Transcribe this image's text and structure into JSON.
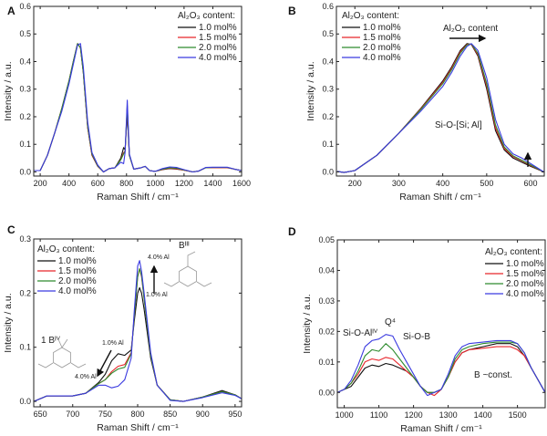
{
  "chart_data": [
    {
      "panel": "A",
      "type": "line",
      "xlabel": "Raman Shift / cm⁻¹",
      "ylabel": "Intensity / a.u.",
      "xlim": [
        155,
        1600
      ],
      "ylim": [
        -0.015,
        0.6
      ],
      "xticks": [
        200,
        400,
        600,
        800,
        1000,
        1200,
        1400,
        1600
      ],
      "yticks": [
        0.0,
        0.1,
        0.2,
        0.3,
        0.4,
        0.5,
        0.6
      ],
      "ydecimals": 1,
      "legend_title": "Al₂O₃ content:",
      "legend_position": "top-right",
      "annotations": [],
      "x": [
        160,
        200,
        250,
        300,
        350,
        400,
        430,
        460,
        480,
        500,
        530,
        560,
        600,
        640,
        680,
        720,
        760,
        780,
        790,
        805,
        820,
        850,
        900,
        930,
        960,
        1000,
        1050,
        1100,
        1150,
        1200,
        1260,
        1300,
        1350,
        1400,
        1500,
        1550,
        1600
      ],
      "series": [
        {
          "name": "1.0 mol%",
          "color": "#111111",
          "values": [
            0.005,
            0.005,
            0.06,
            0.14,
            0.23,
            0.33,
            0.4,
            0.465,
            0.45,
            0.36,
            0.16,
            0.06,
            0.02,
            0.0,
            0.012,
            0.015,
            0.05,
            0.088,
            0.08,
            0.21,
            0.06,
            0.01,
            0.015,
            0.02,
            0.005,
            0.002,
            0.008,
            0.012,
            0.01,
            0.006,
            0.0,
            0.003,
            0.015,
            0.016,
            0.016,
            0.01,
            0.005
          ]
        },
        {
          "name": "1.5 mol%",
          "color": "#e8262b",
          "values": [
            0.005,
            0.005,
            0.06,
            0.14,
            0.23,
            0.33,
            0.4,
            0.465,
            0.45,
            0.36,
            0.16,
            0.062,
            0.021,
            0.0,
            0.012,
            0.015,
            0.045,
            0.07,
            0.075,
            0.235,
            0.06,
            0.01,
            0.015,
            0.02,
            0.005,
            0.002,
            0.009,
            0.013,
            0.011,
            0.006,
            0.0,
            0.003,
            0.015,
            0.015,
            0.015,
            0.01,
            0.005
          ]
        },
        {
          "name": "2.0 mol%",
          "color": "#2e8b2e",
          "values": [
            0.005,
            0.005,
            0.06,
            0.14,
            0.23,
            0.33,
            0.4,
            0.465,
            0.45,
            0.36,
            0.165,
            0.065,
            0.022,
            0.0,
            0.012,
            0.015,
            0.044,
            0.065,
            0.075,
            0.24,
            0.06,
            0.01,
            0.015,
            0.02,
            0.005,
            0.002,
            0.01,
            0.015,
            0.013,
            0.007,
            0.0,
            0.003,
            0.015,
            0.016,
            0.016,
            0.01,
            0.005
          ]
        },
        {
          "name": "4.0 mol%",
          "color": "#3a3ae0",
          "values": [
            0.005,
            0.005,
            0.06,
            0.14,
            0.22,
            0.32,
            0.39,
            0.46,
            0.465,
            0.38,
            0.18,
            0.07,
            0.025,
            0.0,
            0.012,
            0.015,
            0.035,
            0.03,
            0.07,
            0.26,
            0.065,
            0.01,
            0.015,
            0.02,
            0.005,
            0.002,
            0.012,
            0.018,
            0.016,
            0.008,
            0.0,
            0.003,
            0.016,
            0.017,
            0.017,
            0.01,
            0.005
          ]
        }
      ]
    },
    {
      "panel": "B",
      "type": "line",
      "xlabel": "Raman Shift / cm⁻¹",
      "ylabel": "Intensity / a.u.",
      "xlim": [
        158,
        631
      ],
      "ylim": [
        -0.015,
        0.6
      ],
      "xticks": [
        200,
        300,
        400,
        500,
        600
      ],
      "yticks": [
        0.0,
        0.1,
        0.2,
        0.3,
        0.4,
        0.5,
        0.6
      ],
      "ydecimals": 1,
      "legend_title": "Al₂O₃ content:",
      "legend_position": "top-left",
      "annotations": [
        "Al₂O₃ content",
        "Si-O-[Si; Al]"
      ],
      "x": [
        160,
        175,
        200,
        250,
        300,
        350,
        400,
        420,
        440,
        455,
        465,
        480,
        500,
        520,
        540,
        560,
        580,
        600,
        630
      ],
      "series": [
        {
          "name": "1.0 mol%",
          "color": "#111111",
          "values": [
            0.002,
            -0.002,
            0.005,
            0.06,
            0.14,
            0.23,
            0.33,
            0.38,
            0.44,
            0.465,
            0.462,
            0.42,
            0.3,
            0.15,
            0.08,
            0.05,
            0.035,
            0.02,
            0.0
          ]
        },
        {
          "name": "1.5 mol%",
          "color": "#e8262b",
          "values": [
            0.002,
            -0.002,
            0.005,
            0.06,
            0.14,
            0.228,
            0.325,
            0.375,
            0.435,
            0.462,
            0.463,
            0.425,
            0.31,
            0.16,
            0.085,
            0.055,
            0.04,
            0.023,
            0.0
          ]
        },
        {
          "name": "2.0 mol%",
          "color": "#2e8b2e",
          "values": [
            0.002,
            -0.002,
            0.005,
            0.06,
            0.14,
            0.226,
            0.32,
            0.37,
            0.43,
            0.46,
            0.464,
            0.43,
            0.32,
            0.17,
            0.09,
            0.058,
            0.042,
            0.025,
            0.0
          ]
        },
        {
          "name": "4.0 mol%",
          "color": "#3a3ae0",
          "values": [
            0.002,
            -0.002,
            0.005,
            0.06,
            0.14,
            0.22,
            0.31,
            0.36,
            0.42,
            0.455,
            0.465,
            0.44,
            0.34,
            0.19,
            0.1,
            0.065,
            0.05,
            0.03,
            0.0
          ]
        }
      ]
    },
    {
      "panel": "C",
      "type": "line",
      "xlabel": "Raman Shift / cm⁻¹",
      "ylabel": "Intensity / a.u.",
      "xlim": [
        640,
        960
      ],
      "ylim": [
        -0.01,
        0.3
      ],
      "xticks": [
        650,
        700,
        750,
        800,
        850,
        900,
        950
      ],
      "yticks": [
        0.0,
        0.1,
        0.2,
        0.3
      ],
      "ydecimals": 1,
      "legend_title": "Al₂O₃ content:",
      "legend_position": "top-left",
      "annotations": [
        "4.0% Al",
        "1.0% Al",
        "Bᴵᴵᴵ",
        "1 Bᴵⱽ",
        "1.0% Al",
        "4.0% Al"
      ],
      "x": [
        640,
        660,
        680,
        700,
        720,
        740,
        750,
        760,
        770,
        780,
        790,
        795,
        800,
        803,
        806,
        810,
        820,
        830,
        850,
        870,
        900,
        930,
        950,
        960
      ],
      "series": [
        {
          "name": "1.0 mol%",
          "color": "#111111",
          "values": [
            0,
            0.01,
            0.01,
            0.01,
            0.015,
            0.035,
            0.05,
            0.075,
            0.088,
            0.085,
            0.095,
            0.15,
            0.2,
            0.21,
            0.2,
            0.17,
            0.08,
            0.03,
            0.003,
            0,
            0.008,
            0.02,
            0.012,
            0.005
          ]
        },
        {
          "name": "1.5 mol%",
          "color": "#e8262b",
          "values": [
            0,
            0.01,
            0.01,
            0.01,
            0.015,
            0.033,
            0.04,
            0.055,
            0.065,
            0.068,
            0.09,
            0.16,
            0.23,
            0.245,
            0.23,
            0.19,
            0.085,
            0.03,
            0.003,
            0,
            0.008,
            0.018,
            0.012,
            0.005
          ]
        },
        {
          "name": "2.0 mol%",
          "color": "#2e8b2e",
          "values": [
            0,
            0.01,
            0.01,
            0.01,
            0.015,
            0.033,
            0.04,
            0.052,
            0.06,
            0.063,
            0.088,
            0.16,
            0.23,
            0.245,
            0.232,
            0.19,
            0.085,
            0.03,
            0.003,
            0,
            0.008,
            0.018,
            0.012,
            0.005
          ]
        },
        {
          "name": "4.0 mol%",
          "color": "#3a3ae0",
          "values": [
            0,
            0.01,
            0.01,
            0.01,
            0.015,
            0.03,
            0.03,
            0.025,
            0.028,
            0.04,
            0.08,
            0.17,
            0.25,
            0.26,
            0.24,
            0.2,
            0.09,
            0.03,
            0.002,
            0,
            0.007,
            0.016,
            0.011,
            0.005
          ]
        }
      ]
    },
    {
      "panel": "D",
      "type": "line",
      "xlabel": "Raman Shift / cm⁻¹",
      "ylabel": "Intensity / a.u.",
      "xlim": [
        980,
        1580
      ],
      "ylim": [
        -0.005,
        0.05
      ],
      "xticks": [
        1000,
        1100,
        1200,
        1300,
        1400,
        1500
      ],
      "yticks": [
        0.0,
        0.01,
        0.02,
        0.03,
        0.04,
        0.05
      ],
      "ydecimals": 2,
      "legend_title": "Al₂O₃ content:",
      "legend_position": "top-right",
      "annotations": [
        "Si-O-Alᴵⱽ",
        "Q⁴",
        "Si-O-B",
        "B ~const."
      ],
      "x": [
        980,
        1000,
        1020,
        1040,
        1060,
        1080,
        1100,
        1120,
        1140,
        1160,
        1180,
        1200,
        1220,
        1240,
        1260,
        1280,
        1300,
        1320,
        1340,
        1360,
        1400,
        1440,
        1480,
        1500,
        1520,
        1540,
        1560,
        1580
      ],
      "series": [
        {
          "name": "1.0 mol%",
          "color": "#111111",
          "values": [
            0,
            0.001,
            0.002,
            0.005,
            0.008,
            0.009,
            0.0085,
            0.0095,
            0.009,
            0.008,
            0.007,
            0.005,
            0.002,
            0,
            0,
            0.001,
            0.005,
            0.01,
            0.013,
            0.014,
            0.015,
            0.016,
            0.016,
            0.015,
            0.012,
            0.008,
            0.004,
            0.0
          ]
        },
        {
          "name": "1.5 mol%",
          "color": "#e8262b",
          "values": [
            0,
            0.001,
            0.003,
            0.006,
            0.01,
            0.011,
            0.0105,
            0.0115,
            0.011,
            0.009,
            0.007,
            0.005,
            0.002,
            0,
            -0.001,
            0.001,
            0.005,
            0.01,
            0.013,
            0.014,
            0.0145,
            0.015,
            0.015,
            0.014,
            0.012,
            0.008,
            0.004,
            0.0
          ]
        },
        {
          "name": "2.0 mol%",
          "color": "#2e8b2e",
          "values": [
            0,
            0.001,
            0.003,
            0.007,
            0.012,
            0.014,
            0.0135,
            0.016,
            0.014,
            0.011,
            0.008,
            0.005,
            0.002,
            0,
            0,
            0.001,
            0.005,
            0.011,
            0.014,
            0.015,
            0.016,
            0.0165,
            0.0165,
            0.016,
            0.013,
            0.008,
            0.004,
            0.0
          ]
        },
        {
          "name": "4.0 mol%",
          "color": "#3a3ae0",
          "values": [
            0,
            0.001,
            0.004,
            0.009,
            0.015,
            0.017,
            0.0175,
            0.019,
            0.0185,
            0.014,
            0.01,
            0.006,
            0.002,
            -0.001,
            0,
            0.001,
            0.006,
            0.012,
            0.015,
            0.016,
            0.0165,
            0.017,
            0.017,
            0.016,
            0.013,
            0.008,
            0.004,
            0.0
          ]
        }
      ]
    }
  ]
}
